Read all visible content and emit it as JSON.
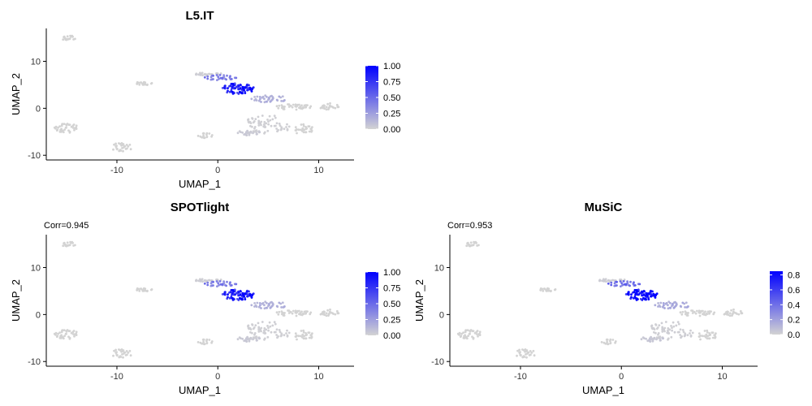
{
  "colors": {
    "low": "#d3d3d3",
    "high": "#0000ff",
    "axis": "#000000"
  },
  "chart_data": [
    {
      "type": "scatter",
      "title": "L5.IT",
      "subtitle": "",
      "xlabel": "UMAP_1",
      "ylabel": "UMAP_2",
      "xlim": [
        -17,
        13.5
      ],
      "ylim": [
        -11,
        17
      ],
      "xticks": [
        -10,
        0,
        10
      ],
      "yticks": [
        -10,
        0,
        10
      ],
      "legend": {
        "placement": "right",
        "min": 0,
        "max": 1.0,
        "ticks": [
          "1.00",
          "0.75",
          "0.50",
          "0.25",
          "0.00"
        ],
        "tick_values": [
          1.0,
          0.75,
          0.5,
          0.25,
          0.0
        ]
      },
      "value_scale": 1.0,
      "grid": false
    },
    {
      "type": "scatter",
      "title": "SPOTlight",
      "subtitle": "Corr=0.945",
      "xlabel": "UMAP_1",
      "ylabel": "UMAP_2",
      "xlim": [
        -17,
        13.5
      ],
      "ylim": [
        -11,
        17
      ],
      "xticks": [
        -10,
        0,
        10
      ],
      "yticks": [
        -10,
        0,
        10
      ],
      "legend": {
        "placement": "right",
        "min": 0,
        "max": 1.0,
        "ticks": [
          "1.00",
          "0.75",
          "0.50",
          "0.25",
          "0.00"
        ],
        "tick_values": [
          1.0,
          0.75,
          0.5,
          0.25,
          0.0
        ]
      },
      "value_scale": 1.0,
      "grid": false
    },
    {
      "type": "scatter",
      "title": "MuSiC",
      "subtitle": "Corr=0.953",
      "xlabel": "UMAP_1",
      "ylabel": "UMAP_2",
      "xlim": [
        -17,
        13.5
      ],
      "ylim": [
        -11,
        17
      ],
      "xticks": [
        -10,
        0,
        10
      ],
      "yticks": [
        -10,
        0,
        10
      ],
      "legend": {
        "placement": "right",
        "min": 0,
        "max": 0.85,
        "ticks": [
          "0.8",
          "0.6",
          "0.4",
          "0.2",
          "0.0"
        ],
        "tick_values": [
          0.8,
          0.6,
          0.4,
          0.2,
          0.0
        ]
      },
      "value_scale": 0.85,
      "grid": false
    }
  ],
  "clusters": [
    {
      "cx": -14.8,
      "cy": 15.0,
      "rx": 0.8,
      "ry": 0.5,
      "n": 18,
      "v": 0
    },
    {
      "cx": -7.2,
      "cy": 5.3,
      "rx": 0.9,
      "ry": 0.5,
      "n": 22,
      "v": 0
    },
    {
      "cx": -15.0,
      "cy": -4.2,
      "rx": 1.2,
      "ry": 1.0,
      "n": 40,
      "v": 0
    },
    {
      "cx": -9.5,
      "cy": -8.3,
      "rx": 1.0,
      "ry": 1.0,
      "n": 30,
      "v": 0
    },
    {
      "cx": -1.2,
      "cy": -5.8,
      "rx": 0.8,
      "ry": 0.5,
      "n": 16,
      "v": 0
    },
    {
      "cx": 2.0,
      "cy": 4.2,
      "rx": 1.6,
      "ry": 1.2,
      "n": 90,
      "v": 0.95
    },
    {
      "cx": 0.3,
      "cy": 6.5,
      "rx": 1.6,
      "ry": 0.6,
      "n": 30,
      "v": 0.45
    },
    {
      "cx": 5.0,
      "cy": 2.0,
      "rx": 2.0,
      "ry": 0.8,
      "n": 40,
      "v": 0.18
    },
    {
      "cx": -1.0,
      "cy": 7.3,
      "rx": 1.5,
      "ry": 0.3,
      "n": 22,
      "v": 0.03
    },
    {
      "cx": 7.5,
      "cy": 0.3,
      "rx": 2.0,
      "ry": 0.6,
      "n": 40,
      "v": 0
    },
    {
      "cx": 11.0,
      "cy": 0.4,
      "rx": 1.0,
      "ry": 0.7,
      "n": 25,
      "v": 0
    },
    {
      "cx": 5.0,
      "cy": -3.5,
      "rx": 2.5,
      "ry": 2.0,
      "n": 70,
      "v": 0.02
    },
    {
      "cx": 8.5,
      "cy": -4.5,
      "rx": 1.0,
      "ry": 1.1,
      "n": 30,
      "v": 0
    },
    {
      "cx": 3.0,
      "cy": -5.2,
      "rx": 1.2,
      "ry": 0.6,
      "n": 24,
      "v": 0.05
    }
  ]
}
